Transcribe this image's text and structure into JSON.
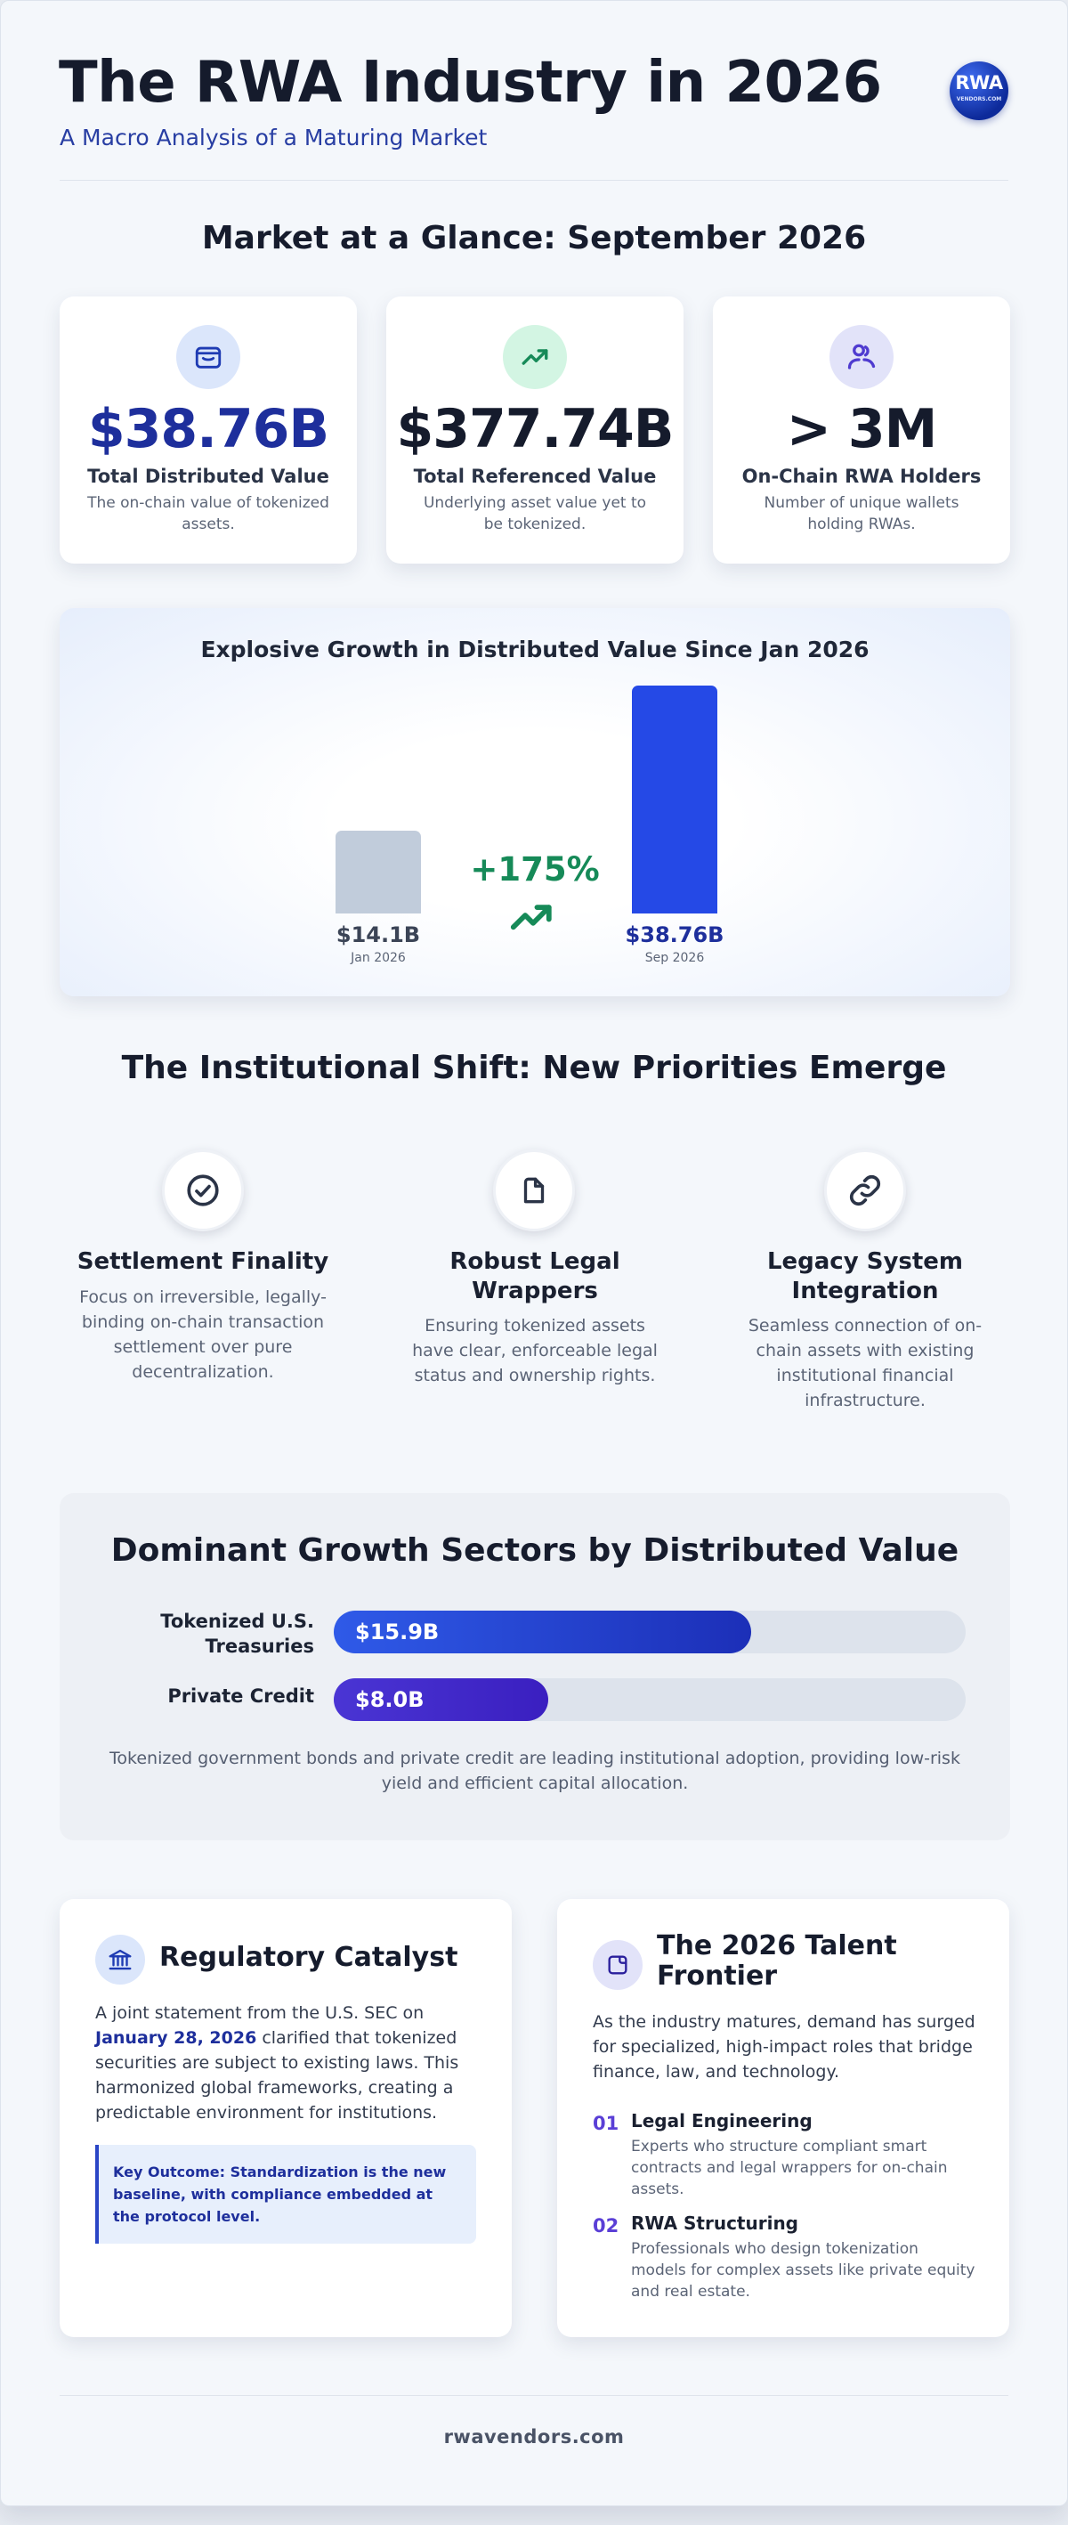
{
  "header": {
    "title": "The RWA Industry in 2026",
    "subtitle": "A Macro Analysis of a Maturing Market",
    "logo_text": "RWA",
    "logo_subtext": "VENDORS.COM"
  },
  "glance": {
    "title": "Market at a Glance: September 2026",
    "stats": [
      {
        "icon": "wallet-icon",
        "value": "$38.76B",
        "label": "Total Distributed Value",
        "desc": "The on-chain value of tokenized assets.",
        "color": "#1e2f9c",
        "icon_bg": "#dbe6fb"
      },
      {
        "icon": "trending-up-icon",
        "value": "$377.74B",
        "label": "Total Referenced Value",
        "desc": "Underlying asset value yet to be tokenized.",
        "color": "#151b2c",
        "icon_bg": "#d3f5e3"
      },
      {
        "icon": "users-icon",
        "value": "> 3M",
        "label": "On-Chain RWA Holders",
        "desc": "Number of unique wallets holding RWAs.",
        "color": "#151b2c",
        "icon_bg": "#e2e3f9"
      }
    ]
  },
  "growth": {
    "chart_data": {
      "type": "bar",
      "title": "Explosive Growth in Distributed Value Since Jan 2026",
      "categories": [
        "Jan 2026",
        "Sep 2026"
      ],
      "values": [
        14.1,
        38.76
      ],
      "value_labels": [
        "$14.1B",
        "$38.76B"
      ],
      "bar_colors": [
        "#c1ccdb",
        "#2549e6"
      ],
      "ylim": [
        0,
        38.76
      ],
      "change_label": "+175%"
    }
  },
  "institutional": {
    "title": "The Institutional Shift: New Priorities Emerge",
    "items": [
      {
        "icon": "check-circle-icon",
        "title": "Settlement Finality",
        "desc": "Focus on irreversible, legally-binding on-chain transaction settlement over pure decentralization."
      },
      {
        "icon": "document-icon",
        "title": "Robust Legal Wrappers",
        "desc": "Ensuring tokenized assets have clear, enforceable legal status and ownership rights."
      },
      {
        "icon": "link-icon",
        "title": "Legacy System Integration",
        "desc": "Seamless connection of on-chain assets with existing institutional financial infrastructure."
      }
    ]
  },
  "sectors": {
    "chart_data": {
      "type": "bar",
      "orientation": "horizontal",
      "title": "Dominant Growth Sectors by Distributed Value",
      "categories": [
        "Tokenized U.S. Treasuries",
        "Private Credit"
      ],
      "values": [
        15.9,
        8.0
      ],
      "value_labels": [
        "$15.9B",
        "$8.0B"
      ],
      "fill_fractions": [
        0.66,
        0.34
      ]
    },
    "note": "Tokenized government bonds and private credit are leading institutional adoption, providing low-risk yield and efficient capital allocation."
  },
  "regulatory": {
    "title": "Regulatory Catalyst",
    "text_before": "A joint statement from the U.S. SEC on ",
    "text_date": "January 28, 2026",
    "text_after": " clarified that tokenized securities are subject to existing laws. This harmonized global frameworks, creating a predictable environment for institutions.",
    "key_outcome": "Key Outcome: Standardization is the new baseline, with compliance embedded at the protocol level."
  },
  "talent": {
    "title": "The 2026 Talent Frontier",
    "intro": "As the industry matures, demand has surged for specialized, high-impact roles that bridge finance, law, and technology.",
    "roles": [
      {
        "num": "01",
        "title": "Legal Engineering",
        "desc": "Experts who structure compliant smart contracts and legal wrappers for on-chain assets."
      },
      {
        "num": "02",
        "title": "RWA Structuring",
        "desc": "Professionals who design tokenization models for complex assets like private equity and real estate."
      }
    ]
  },
  "footer": {
    "text": "rwavendors.com"
  }
}
